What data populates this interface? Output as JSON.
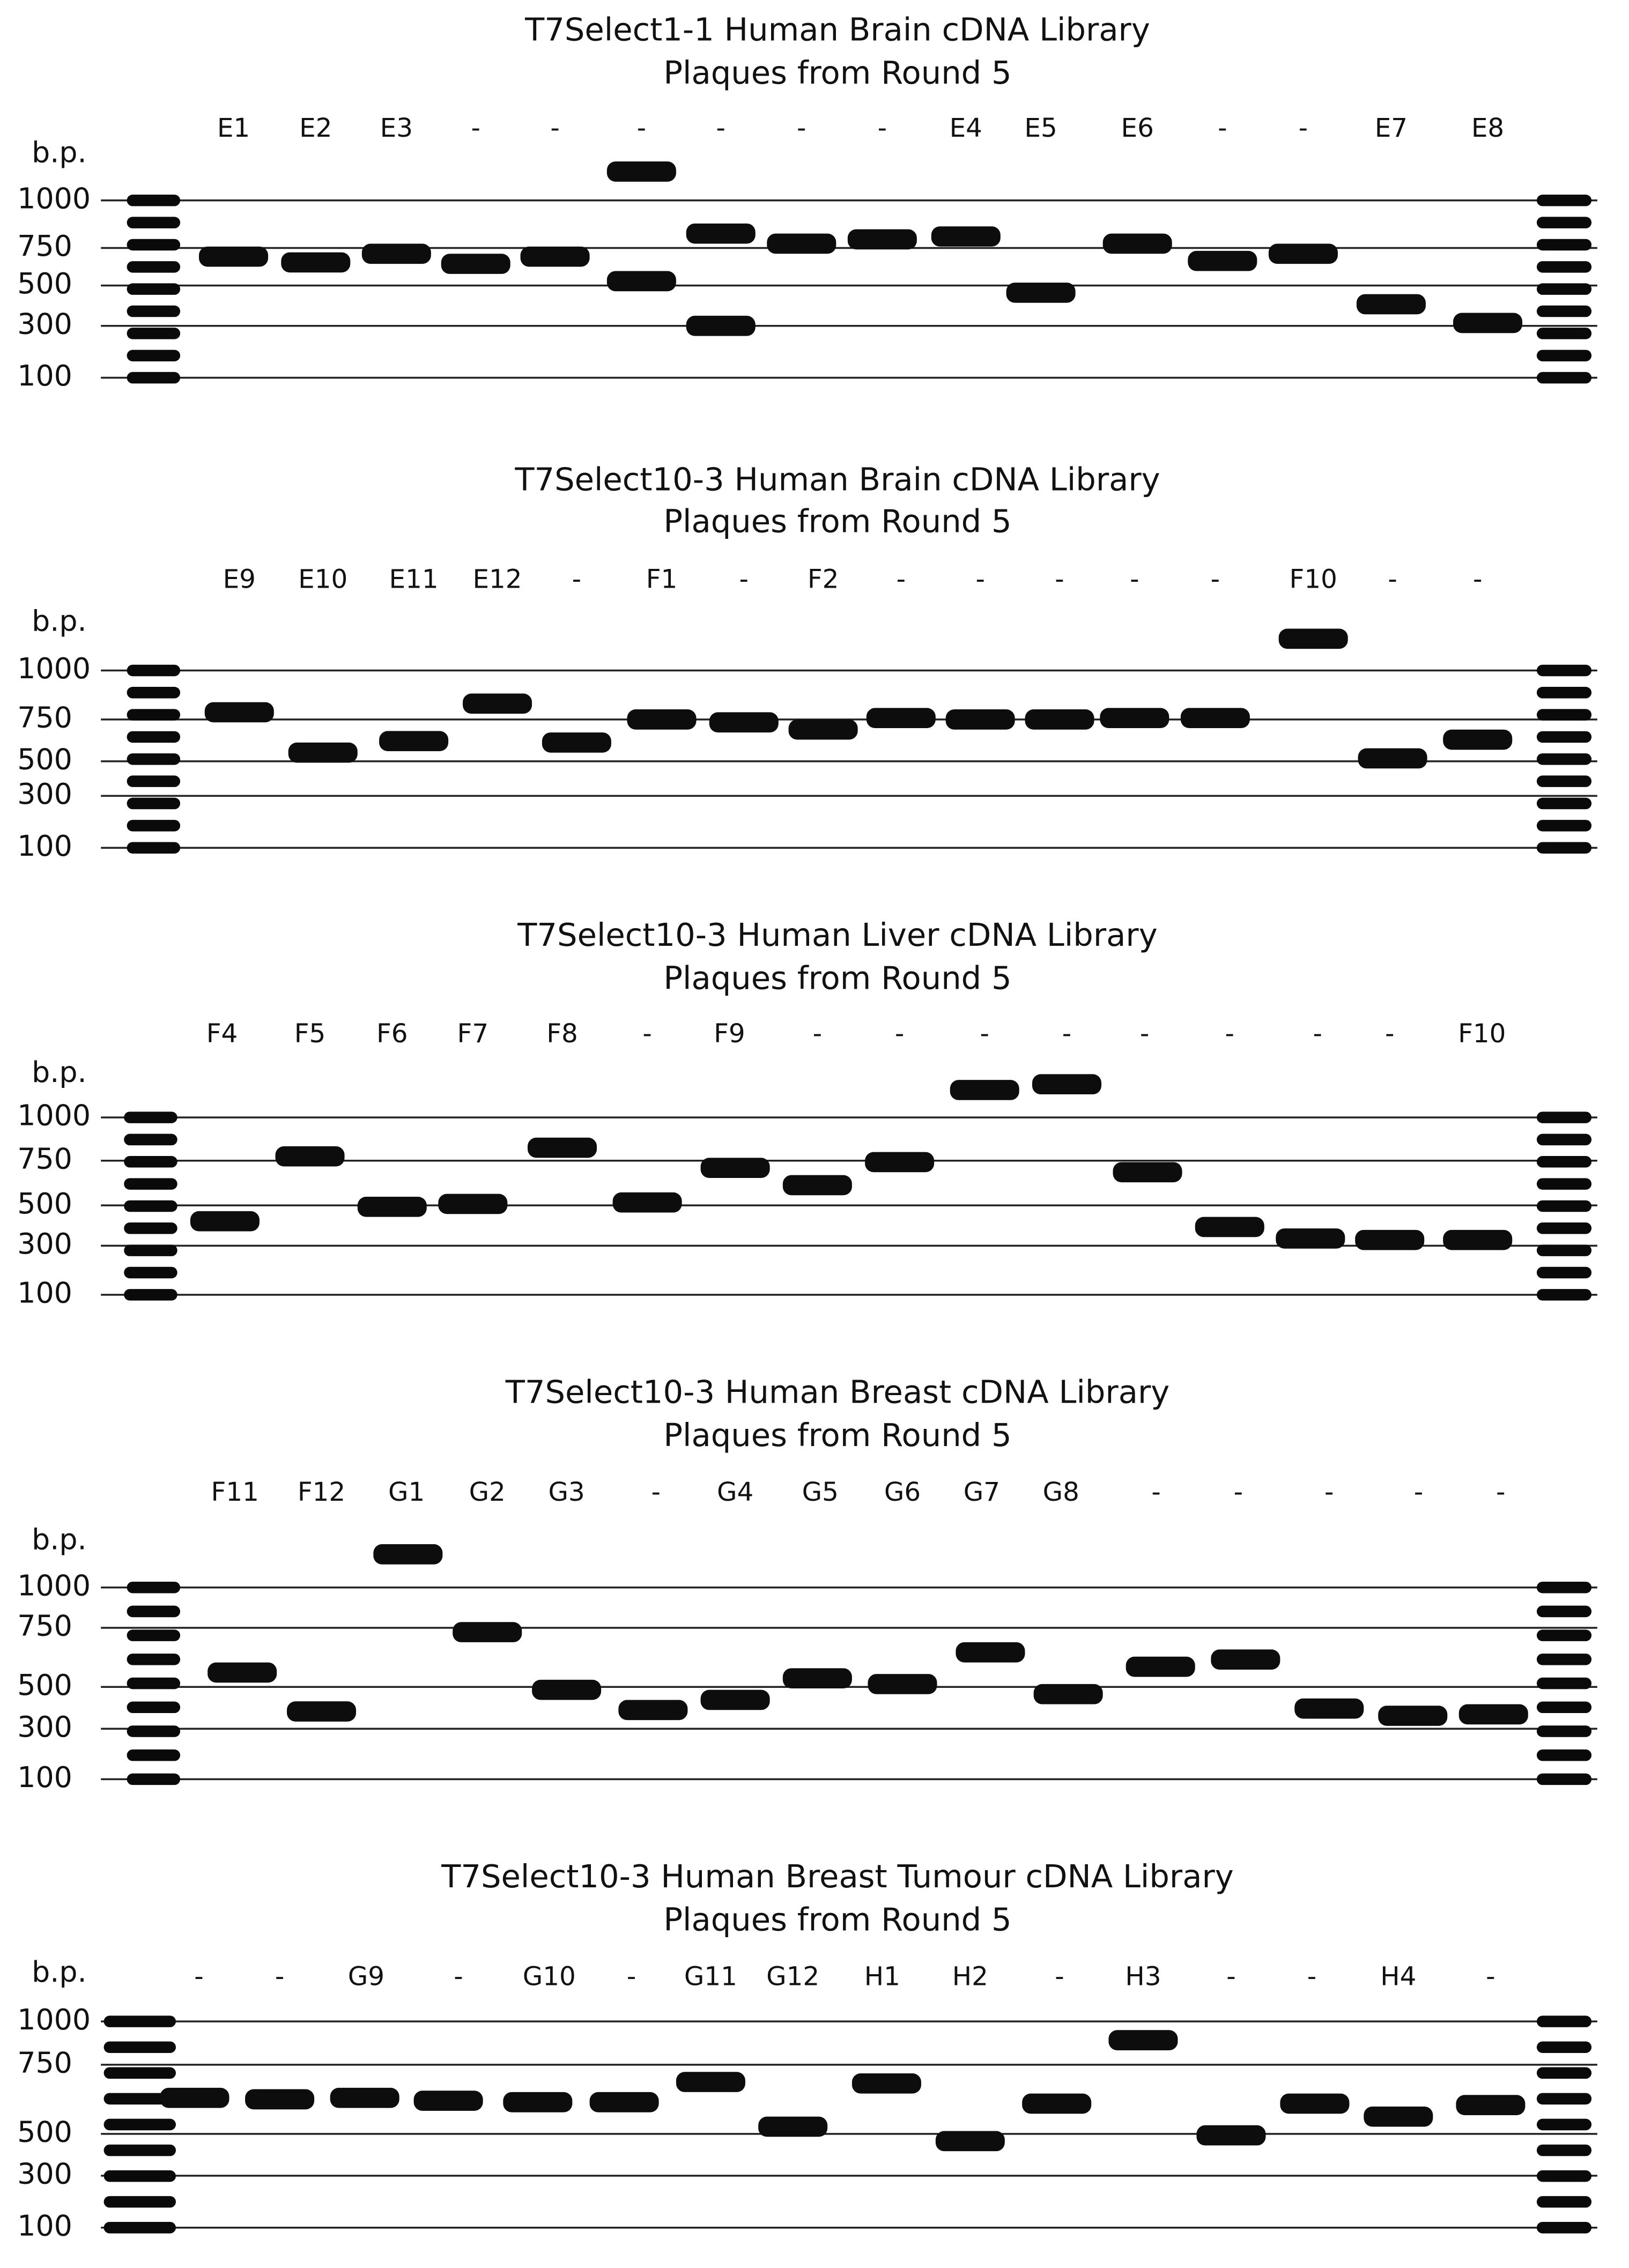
{
  "panels": [
    {
      "title": "T7Select1-1 Human Brain cDNA Library",
      "subtitle": "Plaques from Round 5",
      "axis_label": "b.p.",
      "size_labels": [
        "1000",
        "750",
        "500",
        "300",
        "100"
      ],
      "lanes": [
        "E1",
        "E2",
        "E3",
        "-",
        "-",
        "-",
        "-",
        "-",
        "-",
        "E4",
        "E5",
        "E6",
        "-",
        "-",
        "E7",
        "E8"
      ]
    },
    {
      "title": "T7Select10-3 Human Brain cDNA Library",
      "subtitle": "Plaques from Round 5",
      "axis_label": "b.p.",
      "size_labels": [
        "1000",
        "750",
        "500",
        "300",
        "100"
      ],
      "lanes": [
        "E9",
        "E10",
        "E11",
        "E12",
        "-",
        "F1",
        "-",
        "F2",
        "-",
        "-",
        "-",
        "-",
        "-",
        "F10",
        "-",
        "-"
      ]
    },
    {
      "title": "T7Select10-3 Human Liver cDNA Library",
      "subtitle": "Plaques from Round 5",
      "axis_label": "b.p.",
      "size_labels": [
        "1000",
        "750",
        "500",
        "300",
        "100"
      ],
      "lanes": [
        "F4",
        "F5",
        "F6",
        "F7",
        "F8",
        "-",
        "F9",
        "-",
        "-",
        "-",
        "-",
        "-",
        "-",
        "-",
        "-",
        "F10"
      ]
    },
    {
      "title": "T7Select10-3 Human Breast cDNA Library",
      "subtitle": "Plaques from Round 5",
      "axis_label": "b.p.",
      "size_labels": [
        "1000",
        "750",
        "500",
        "300",
        "100"
      ],
      "lanes": [
        "F11",
        "F12",
        "G1",
        "G2",
        "G3",
        "-",
        "G4",
        "G5",
        "G6",
        "G7",
        "G8",
        "-",
        "-",
        "-",
        "-",
        "-"
      ]
    },
    {
      "title": "T7Select10-3 Human Breast Tumour cDNA Library",
      "subtitle": "Plaques from Round 5",
      "axis_label": "b.p.",
      "size_labels": [
        "1000",
        "750",
        "500",
        "300",
        "100"
      ],
      "lanes": [
        "-",
        "-",
        "G9",
        "-",
        "G10",
        "-",
        "G11",
        "G12",
        "H1",
        "H2",
        "-",
        "H3",
        "-",
        "-",
        "H4",
        "-"
      ]
    }
  ]
}
